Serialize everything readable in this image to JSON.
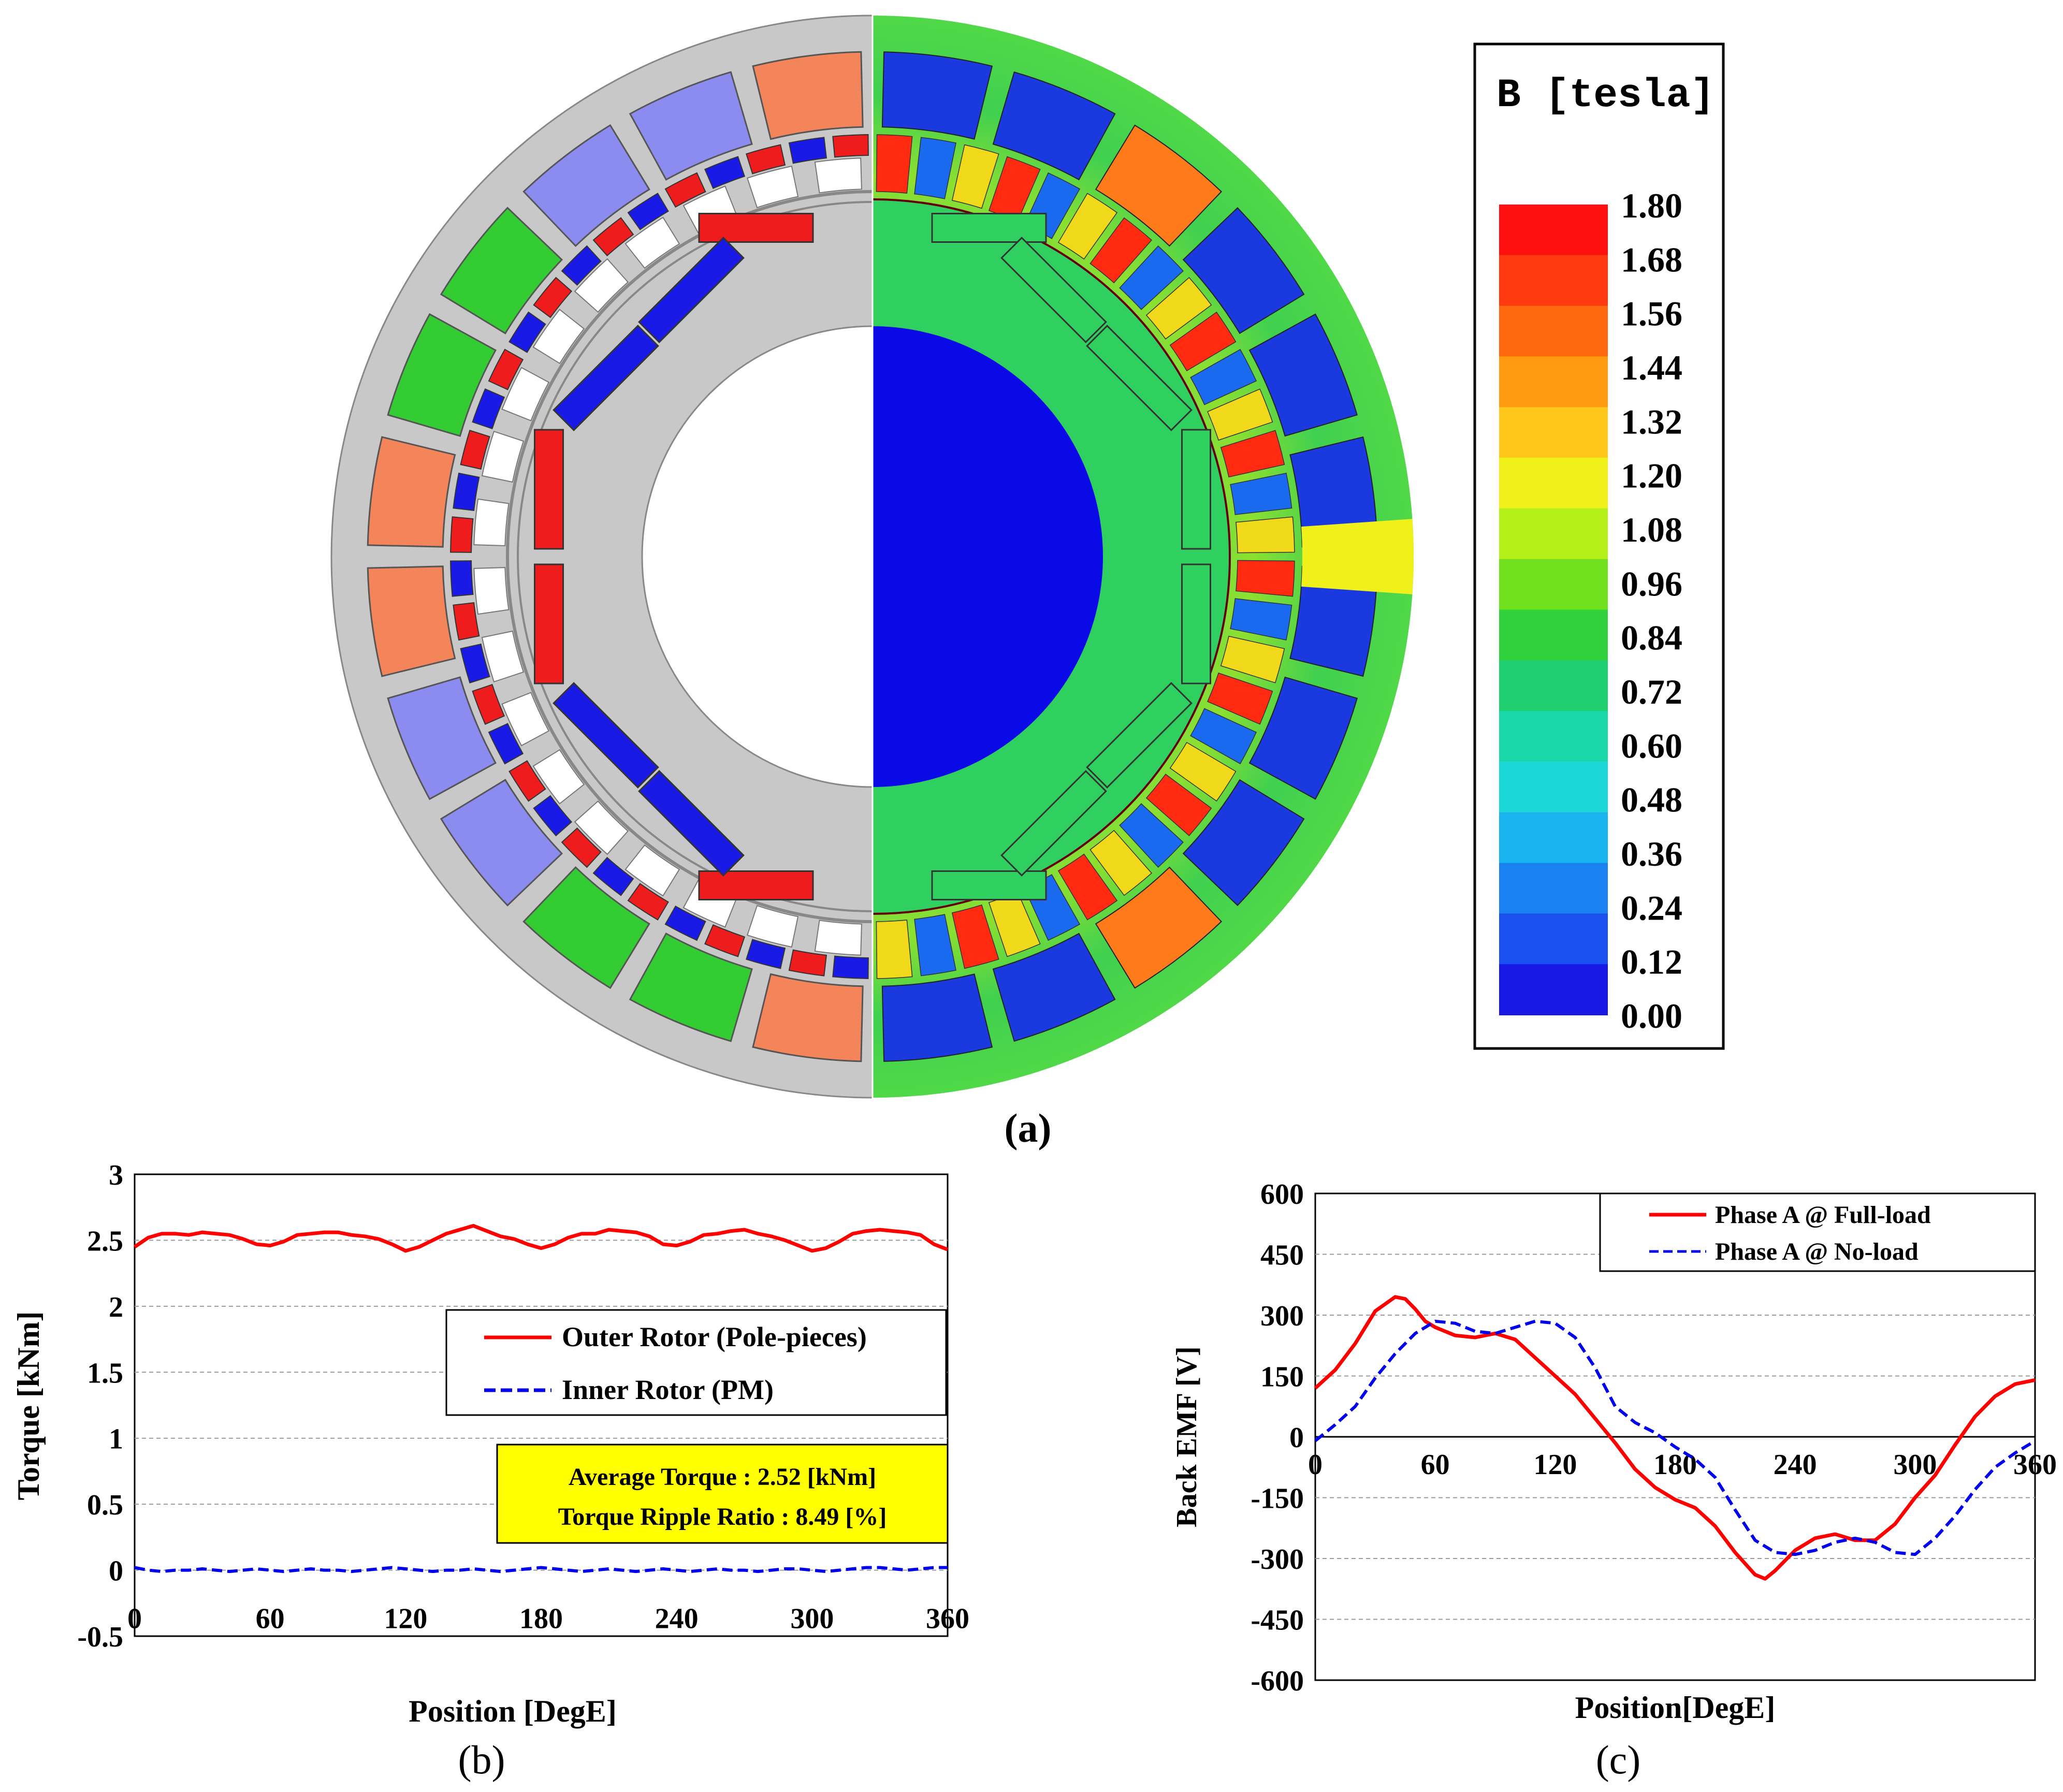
{
  "figure": {
    "panel_a_caption": "(a)",
    "panel_b_caption": "(b)",
    "panel_c_caption": "(c)"
  },
  "panel_a": {
    "colorbar_title": "B [tesla]",
    "colorbar_labels": [
      "1.80",
      "1.68",
      "1.56",
      "1.44",
      "1.32",
      "1.20",
      "1.08",
      "0.96",
      "0.84",
      "0.72",
      "0.60",
      "0.48",
      "0.36",
      "0.24",
      "0.12",
      "0.00"
    ],
    "colorbar_colors": [
      "#ff1010",
      "#ff3a10",
      "#ff6a10",
      "#ff9a10",
      "#ffc81a",
      "#f0f01a",
      "#b6f01a",
      "#6ee01e",
      "#30d23c",
      "#20d070",
      "#1ad8a8",
      "#1ad8d8",
      "#1ab4f0",
      "#1a82f0",
      "#1a50f0",
      "#1a1ae6"
    ],
    "left_colors": {
      "background": "#c8c8c8",
      "red": "#ee1c1c",
      "blue": "#1a1ae6",
      "green": "#33cc33",
      "orange": "#f4845a",
      "lavender": "#8c8cf0",
      "slot": "#ffffff"
    },
    "right_colors": {
      "stator_field": "#40d050",
      "sun": "#0a0ae6"
    }
  },
  "chart_data": [
    {
      "type": "line",
      "panel": "b",
      "xlabel": "Position [DegE]",
      "ylabel": "Torque [kNm]",
      "xlim": [
        0,
        360
      ],
      "ylim": [
        -0.5,
        3
      ],
      "xticks": [
        "0",
        "60",
        "120",
        "180",
        "240",
        "300",
        "360"
      ],
      "yticks": [
        "-0.5",
        "0",
        "0.5",
        "1",
        "1.5",
        "2",
        "2.5",
        "3"
      ],
      "grid": "horizontal dashed",
      "legend_position": "center-right",
      "series": [
        {
          "name": "Outer Rotor (Pole-pieces)",
          "color": "#ff0000",
          "style": "solid",
          "x": [
            0,
            6,
            12,
            18,
            24,
            30,
            36,
            42,
            48,
            54,
            60,
            66,
            72,
            78,
            84,
            90,
            96,
            102,
            108,
            114,
            120,
            126,
            132,
            138,
            144,
            150,
            156,
            162,
            168,
            174,
            180,
            186,
            192,
            198,
            204,
            210,
            216,
            222,
            228,
            234,
            240,
            246,
            252,
            258,
            264,
            270,
            276,
            282,
            288,
            294,
            300,
            306,
            312,
            318,
            324,
            330,
            336,
            342,
            348,
            354,
            360
          ],
          "values": [
            2.45,
            2.52,
            2.55,
            2.55,
            2.54,
            2.56,
            2.55,
            2.54,
            2.51,
            2.47,
            2.46,
            2.49,
            2.54,
            2.55,
            2.56,
            2.56,
            2.54,
            2.53,
            2.51,
            2.47,
            2.42,
            2.45,
            2.5,
            2.55,
            2.58,
            2.61,
            2.57,
            2.53,
            2.51,
            2.47,
            2.44,
            2.47,
            2.52,
            2.55,
            2.55,
            2.58,
            2.57,
            2.56,
            2.53,
            2.47,
            2.46,
            2.49,
            2.54,
            2.55,
            2.57,
            2.58,
            2.55,
            2.53,
            2.5,
            2.46,
            2.42,
            2.44,
            2.49,
            2.55,
            2.57,
            2.58,
            2.57,
            2.56,
            2.54,
            2.47,
            2.43
          ]
        },
        {
          "name": "Inner Rotor (PM)",
          "color": "#0000ee",
          "style": "dashed",
          "x": [
            0,
            6,
            12,
            18,
            24,
            30,
            36,
            42,
            48,
            54,
            60,
            66,
            72,
            78,
            84,
            90,
            96,
            102,
            108,
            114,
            120,
            126,
            132,
            138,
            144,
            150,
            156,
            162,
            168,
            174,
            180,
            186,
            192,
            198,
            204,
            210,
            216,
            222,
            228,
            234,
            240,
            246,
            252,
            258,
            264,
            270,
            276,
            282,
            288,
            294,
            300,
            306,
            312,
            318,
            324,
            330,
            336,
            342,
            348,
            354,
            360
          ],
          "values": [
            0.02,
            0.0,
            -0.01,
            0.0,
            0.0,
            0.01,
            0.0,
            -0.01,
            0.0,
            0.01,
            0.0,
            -0.01,
            0.0,
            0.01,
            0.0,
            0.0,
            -0.01,
            0.0,
            0.01,
            0.02,
            0.01,
            0.0,
            -0.01,
            0.0,
            0.0,
            0.01,
            0.0,
            -0.01,
            0.0,
            0.01,
            0.02,
            0.01,
            0.0,
            -0.01,
            0.0,
            0.01,
            0.0,
            -0.01,
            0.0,
            0.01,
            0.0,
            -0.01,
            0.0,
            0.01,
            0.0,
            0.0,
            -0.01,
            0.0,
            0.01,
            0.01,
            0.0,
            -0.01,
            0.0,
            0.01,
            0.02,
            0.02,
            0.01,
            0.0,
            0.01,
            0.02,
            0.02
          ]
        }
      ],
      "annotation": {
        "line1": "Average Torque : 2.52 [kNm]",
        "line2": "Torque Ripple Ratio : 8.49 [%]",
        "background": "#ffff00"
      }
    },
    {
      "type": "line",
      "panel": "c",
      "xlabel": "Position[DegE]",
      "ylabel": "Back EMF [V]",
      "xlim": [
        0,
        360
      ],
      "ylim": [
        -600,
        600
      ],
      "xticks": [
        "0",
        "60",
        "120",
        "180",
        "240",
        "300",
        "360"
      ],
      "yticks": [
        "600",
        "450",
        "300",
        "150",
        "0",
        "-150",
        "-300",
        "-450",
        "-600"
      ],
      "grid": "horizontal dashed",
      "legend_position": "top-right",
      "series": [
        {
          "name": "Phase A @ Full-load",
          "color": "#ff0000",
          "style": "solid",
          "x": [
            0,
            10,
            20,
            30,
            40,
            45,
            50,
            55,
            60,
            70,
            80,
            90,
            100,
            110,
            120,
            130,
            140,
            150,
            160,
            170,
            180,
            190,
            200,
            210,
            220,
            225,
            230,
            240,
            250,
            260,
            270,
            280,
            290,
            300,
            310,
            320,
            330,
            340,
            350,
            360
          ],
          "values": [
            120,
            165,
            230,
            310,
            345,
            340,
            315,
            285,
            270,
            250,
            245,
            255,
            240,
            195,
            150,
            105,
            45,
            -15,
            -80,
            -125,
            -155,
            -175,
            -220,
            -285,
            -340,
            -350,
            -330,
            -280,
            -250,
            -240,
            -255,
            -255,
            -215,
            -150,
            -95,
            -20,
            50,
            100,
            130,
            140
          ]
        },
        {
          "name": "Phase A @ No-load",
          "color": "#0000ee",
          "style": "dashed",
          "x": [
            0,
            10,
            20,
            30,
            40,
            50,
            60,
            70,
            80,
            90,
            100,
            110,
            120,
            130,
            140,
            150,
            160,
            170,
            180,
            190,
            200,
            210,
            220,
            230,
            240,
            250,
            260,
            270,
            280,
            290,
            300,
            310,
            320,
            330,
            340,
            350,
            360
          ],
          "values": [
            -10,
            30,
            75,
            145,
            205,
            255,
            285,
            280,
            260,
            255,
            270,
            285,
            280,
            245,
            170,
            75,
            35,
            10,
            -25,
            -55,
            -100,
            -180,
            -255,
            -285,
            -290,
            -280,
            -260,
            -250,
            -260,
            -285,
            -290,
            -250,
            -195,
            -130,
            -75,
            -40,
            -10
          ]
        }
      ]
    }
  ]
}
